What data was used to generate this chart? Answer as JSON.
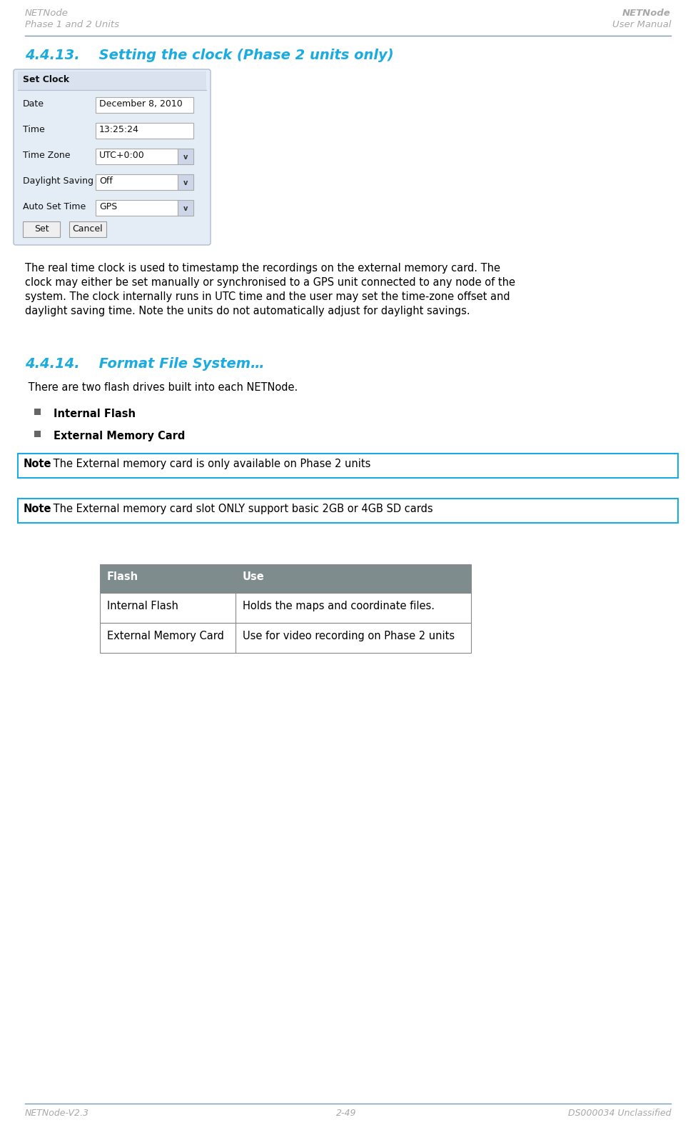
{
  "header_left_line1": "NETNode",
  "header_left_line2": "Phase 1 and 2 Units",
  "header_right_line1": "NETNode",
  "header_right_line2": "User Manual",
  "footer_left": "NETNode-V2.3",
  "footer_center": "2-49",
  "footer_right": "DS000034 Unclassified",
  "section_413_title": "4.4.13.    Setting the clock (Phase 2 units only)",
  "section_414_title": "4.4.14.    Format File System…",
  "body_text_413_lines": [
    "The real time clock is used to timestamp the recordings on the external memory card. The",
    "clock may either be set manually or synchronised to a GPS unit connected to any node of the",
    "system. The clock internally runs in UTC time and the user may set the time-zone offset and",
    "daylight saving time. Note the units do not automatically adjust for daylight savings."
  ],
  "body_text_414": " There are two flash drives built into each NETNode.",
  "bullet1": "Internal Flash",
  "bullet2": "External Memory Card",
  "note1_bold": "Note",
  "note1_rest": ": The External memory card is only available on Phase 2 units",
  "note2_bold": "Note",
  "note2_rest": ": The External memory card slot ONLY support basic 2GB or 4GB SD cards",
  "table_header_col1": "Flash",
  "table_header_col2": "Use",
  "table_row1_col1": "Internal Flash",
  "table_row1_col2": "Holds the maps and coordinate files.",
  "table_row2_col1": "External Memory Card",
  "table_row2_col2": "Use for video recording on Phase 2 units",
  "dialog_title": "Set Clock",
  "dialog_fields": [
    {
      "label": "Date",
      "value": "December 8, 2010",
      "type": "text"
    },
    {
      "label": "Time",
      "value": "13:25:24",
      "type": "text"
    },
    {
      "label": "Time Zone",
      "value": "UTC+0:00",
      "type": "dropdown"
    },
    {
      "label": "Daylight Saving",
      "value": "Off",
      "type": "dropdown"
    },
    {
      "label": "Auto Set Time",
      "value": "GPS",
      "type": "dropdown"
    }
  ],
  "dialog_buttons": [
    "Set",
    "Cancel"
  ],
  "header_color": "#a8a8a8",
  "section_title_color": "#1aabe0",
  "body_color": "#000000",
  "note_border_color": "#1aabe0",
  "note_bg_color": "#ffffff",
  "table_header_bg": "#7f8c8d",
  "table_header_text": "#ffffff",
  "table_border_color": "#888888",
  "dialog_bg": "#e4ecf5",
  "dialog_border": "#b0bcd0",
  "dialog_title_bg": "#dae2ef",
  "button_bg": "#efefef",
  "button_border": "#999999",
  "field_bg": "#ffffff",
  "field_border": "#aaaaaa",
  "dropdown_arrow_bg": "#ccd6e8",
  "hr_color": "#7a9ab0",
  "bullet_color": "#666666"
}
